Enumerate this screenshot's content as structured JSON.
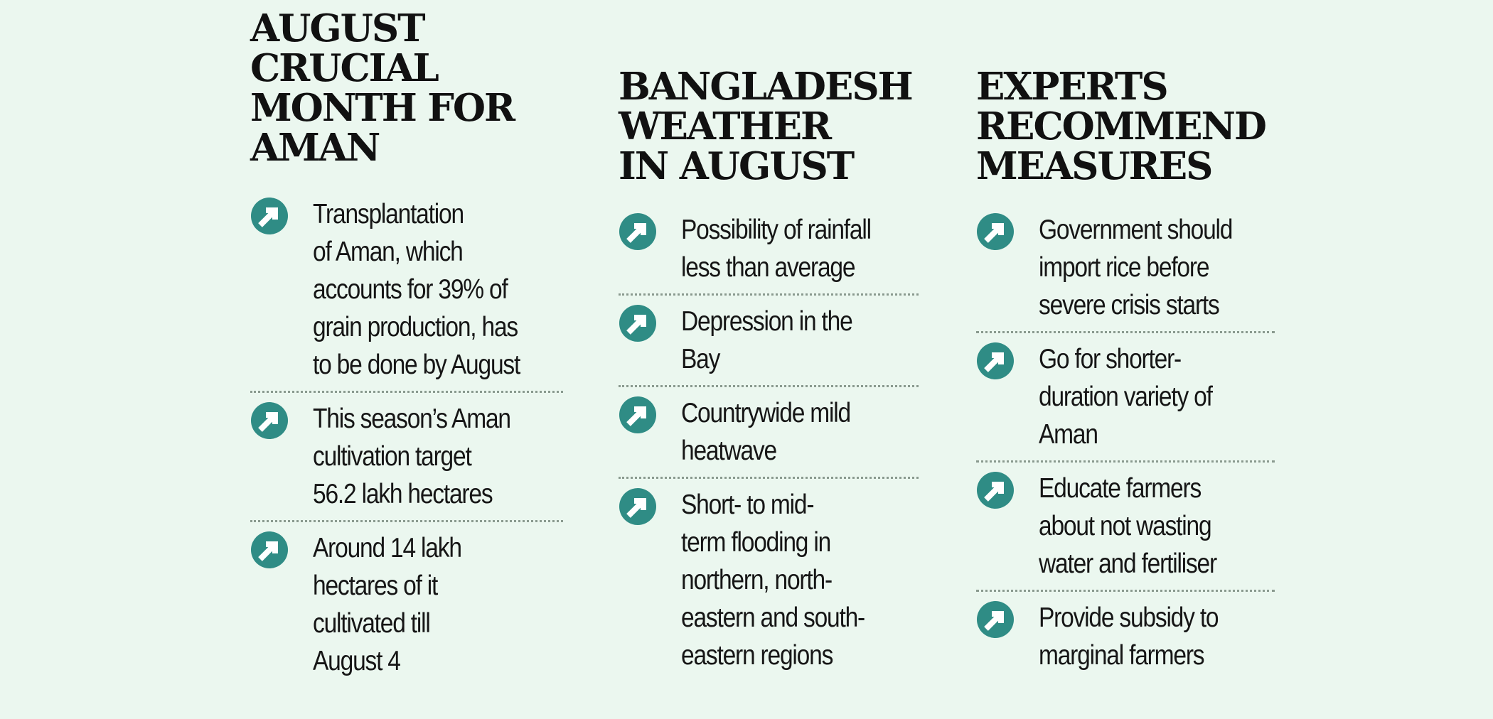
{
  "colors": {
    "background": "#ebf7ef",
    "icon_circle": "#2f8c85",
    "icon_arrow": "#ffffff",
    "divider": "#8a9a8f"
  },
  "icon": "arrow-up-right-circle-icon",
  "columns": [
    {
      "heading": "AUGUST\nCRUCIAL\nMONTH FOR\nAMAN",
      "items": [
        {
          "text": "Transplantation\nof Aman, which\naccounts for 39% of\ngrain production, has\nto be done by August"
        },
        {
          "text": "This season’s Aman\ncultivation target\n56.2 lakh hectares"
        },
        {
          "text": "Around 14 lakh\nhectares of it\ncultivated till\nAugust 4"
        }
      ]
    },
    {
      "heading": "BANGLADESH\nWEATHER\nIN AUGUST",
      "items": [
        {
          "text": "Possibility of rainfall\nless than average"
        },
        {
          "text": "Depression in the\nBay"
        },
        {
          "text": "Countrywide mild\nheatwave"
        },
        {
          "text": "Short- to mid-\nterm flooding in\nnorthern, north-\neastern and south-\neastern regions"
        }
      ]
    },
    {
      "heading": "EXPERTS\nRECOMMEND\nMEASURES",
      "items": [
        {
          "text": "Government should\nimport rice before\nsevere crisis starts"
        },
        {
          "text": "Go for shorter-\nduration variety of\nAman"
        },
        {
          "text": "Educate farmers\nabout not wasting\nwater and fertiliser"
        },
        {
          "text": "Provide subsidy to\nmarginal farmers"
        }
      ]
    }
  ]
}
